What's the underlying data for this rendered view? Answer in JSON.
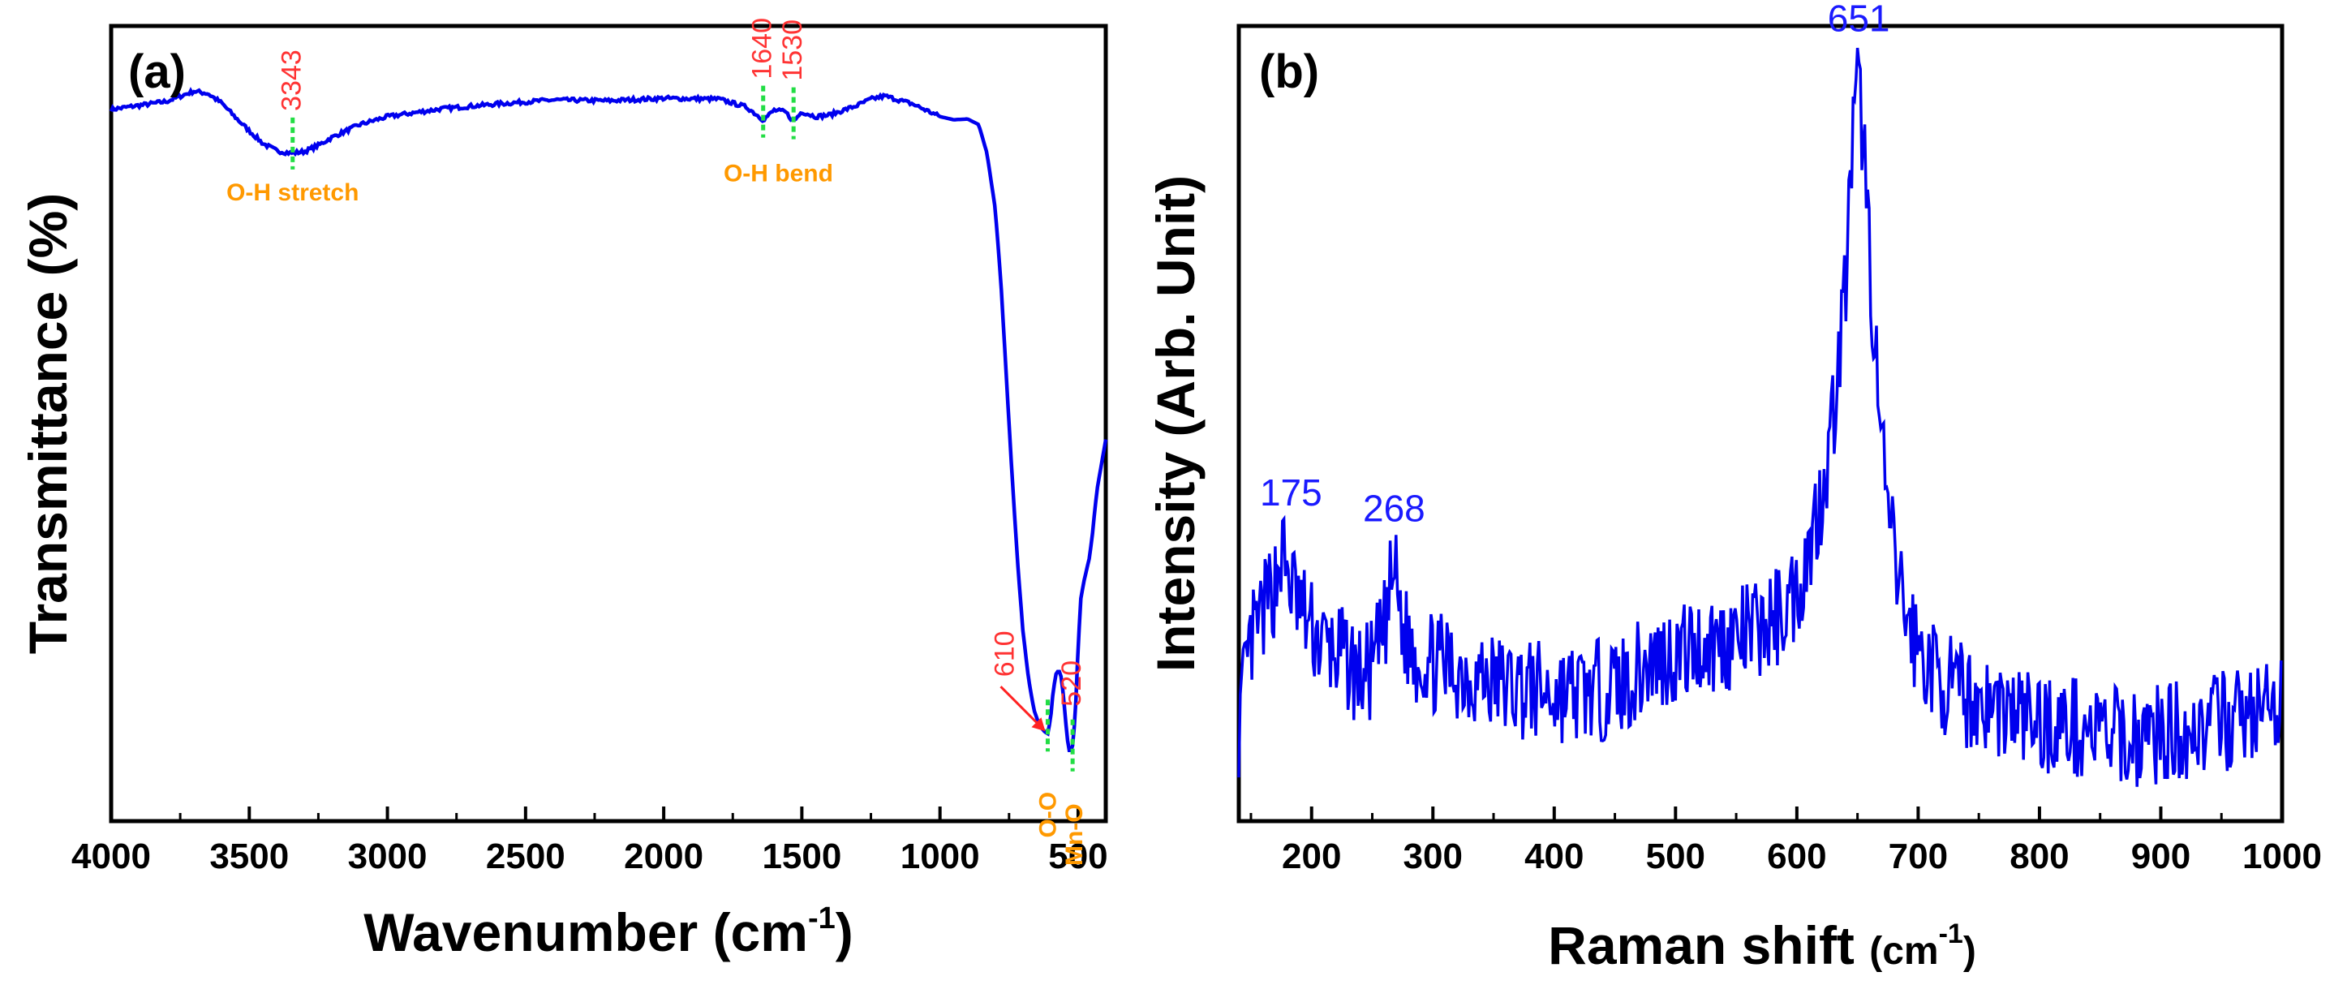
{
  "colors": {
    "line": "#0000ee",
    "peak_label_ftir": "#ff3333",
    "assignment": "#ff9900",
    "marker": "#22dd44",
    "peak_label_raman": "#1a1aff",
    "arrow": "#ff2222"
  },
  "chart_data": [
    {
      "type": "line",
      "panel_label": "(a)",
      "xlabel": "Wavenumber (cm",
      "xlabel_sup": "-1",
      "xlabel_close": ")",
      "ylabel": "Transmittance (%)",
      "xlim": [
        4000,
        400
      ],
      "ylim": [
        0,
        100
      ],
      "x_reversed": true,
      "x_ticks": [
        4000,
        3500,
        3000,
        2500,
        2000,
        1500,
        1000,
        500
      ],
      "y_ticks_shown": false,
      "grid": false,
      "series": [
        {
          "x": [
            4000,
            3900,
            3800,
            3700,
            3650,
            3600,
            3550,
            3500,
            3450,
            3400,
            3350,
            3300,
            3250,
            3200,
            3100,
            3000,
            2800,
            2600,
            2400,
            2200,
            2000,
            1800,
            1700,
            1640,
            1600,
            1560,
            1530,
            1500,
            1450,
            1400,
            1350,
            1300,
            1250,
            1200,
            1100,
            1000,
            950,
            900,
            860,
            830,
            800,
            780,
            760,
            740,
            720,
            700,
            680,
            660,
            640,
            620,
            610,
            600,
            590,
            580,
            570,
            560,
            550,
            540,
            530,
            520,
            510,
            500,
            490,
            480,
            470,
            460,
            450,
            440,
            430,
            420,
            410,
            400
          ],
          "y": [
            89.5,
            90,
            90.5,
            91.8,
            91.5,
            90.3,
            88.5,
            86.8,
            85.2,
            84.3,
            84,
            84.2,
            85,
            86,
            87.6,
            88.6,
            89.6,
            90.2,
            90.7,
            90.6,
            90.9,
            90.8,
            89.8,
            88.2,
            89.4,
            89.2,
            88,
            89.2,
            88.6,
            88.8,
            89.4,
            90,
            90.8,
            91.2,
            90.2,
            88.6,
            88.2,
            88.3,
            87.6,
            84,
            77,
            68,
            56,
            44,
            33,
            24,
            18,
            14,
            12,
            11.2,
            11,
            12.8,
            16.5,
            18.5,
            19,
            18,
            14.5,
            10.5,
            8.5,
            9.5,
            13.5,
            22,
            28,
            30,
            31.5,
            33,
            35.5,
            39,
            42,
            44,
            46,
            48
          ]
        }
      ],
      "annotations": [
        {
          "text": "3343",
          "x": 3343,
          "y": 84.2,
          "label": "O-H stretch"
        },
        {
          "text": "1640",
          "x": 1640,
          "y": 88.2,
          "label": ""
        },
        {
          "text": "1530",
          "x": 1530,
          "y": 88,
          "label": ""
        },
        {
          "text": "610",
          "x": 610,
          "y": 11,
          "label": "O-O"
        },
        {
          "text": "520",
          "x": 520,
          "y": 8.5,
          "label": "Mn-O"
        }
      ],
      "group_labels": [
        {
          "text": "O-H bend",
          "x": 1585
        }
      ]
    },
    {
      "type": "line",
      "panel_label": "(b)",
      "xlabel": "Raman shift ",
      "xlabel_unit": "(cm",
      "xlabel_sup": "-1",
      "xlabel_close": ")",
      "ylabel": "Intensity (Arb. Unit)",
      "xlim": [
        140,
        1000
      ],
      "ylim": [
        0,
        100
      ],
      "x_ticks": [
        200,
        300,
        400,
        500,
        600,
        700,
        800,
        900,
        1000
      ],
      "y_ticks_shown": false,
      "grid": false,
      "series": [
        {
          "x": [
            140,
            150,
            160,
            170,
            175,
            180,
            190,
            200,
            210,
            220,
            230,
            240,
            250,
            260,
            268,
            275,
            285,
            300,
            320,
            340,
            360,
            380,
            400,
            420,
            440,
            460,
            480,
            500,
            520,
            540,
            560,
            580,
            600,
            610,
            620,
            630,
            640,
            645,
            651,
            656,
            662,
            670,
            680,
            690,
            700,
            720,
            740,
            760,
            780,
            800,
            820,
            840,
            860,
            880,
            900,
            920,
            940,
            960,
            980,
            1000
          ],
          "y": [
            12,
            22,
            26,
            30,
            34,
            31,
            27,
            24,
            22,
            21,
            20,
            18,
            19,
            24,
            32,
            24,
            21,
            20,
            19,
            18,
            17,
            16.5,
            16,
            16,
            16.5,
            17.5,
            20,
            21,
            22,
            22.5,
            23.5,
            25,
            29,
            34,
            41,
            51,
            67,
            83,
            93,
            83,
            66,
            46,
            33,
            26,
            21.5,
            17.5,
            15.5,
            14.5,
            13.5,
            12.5,
            12,
            11.5,
            10.5,
            10.5,
            11,
            11.5,
            12,
            13,
            13.5,
            14
          ]
        }
      ],
      "annotations": [
        {
          "text": "175",
          "x": 175
        },
        {
          "text": "268",
          "x": 268
        },
        {
          "text": "651",
          "x": 651
        }
      ]
    }
  ]
}
